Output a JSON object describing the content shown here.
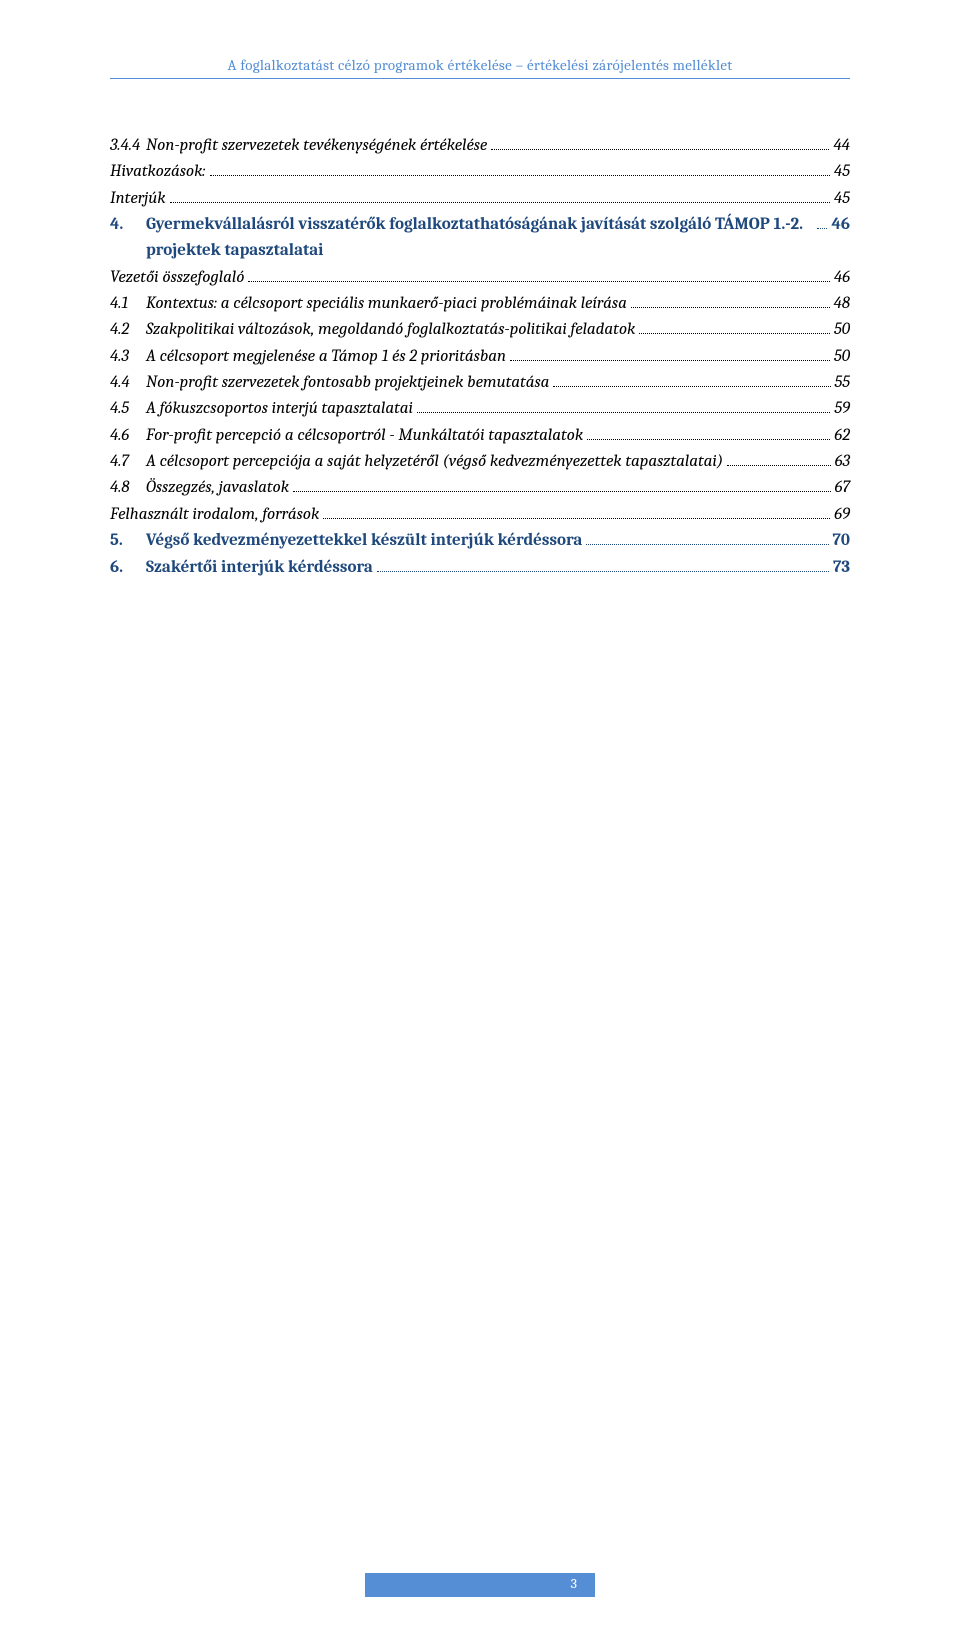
{
  "header": {
    "text": "A foglalkoztatást célzó programok értékelése – értékelési zárójelentés melléklet",
    "color": "#558ed5",
    "border_color": "#558ed5",
    "font_size": 15
  },
  "toc": {
    "font_size": 17,
    "color_regular": "#000000",
    "color_section": "#1f497d",
    "entries": [
      {
        "num": "3.4.4",
        "title": "Non-profit szervezetek tevékenységének értékelése",
        "page": "44",
        "italic": true,
        "bold": false,
        "blue": false,
        "level": 1
      },
      {
        "num": "",
        "title": "Hivatkozások:",
        "page": "45",
        "italic": true,
        "bold": false,
        "blue": false,
        "level": 1
      },
      {
        "num": "",
        "title": "Interjúk",
        "page": "45",
        "italic": true,
        "bold": false,
        "blue": false,
        "level": 1
      },
      {
        "num": "4.",
        "title": "Gyermekvállalásról visszatérők foglalkoztathatóságának javítását szolgáló TÁMOP 1.-2. projektek tapasztalatai",
        "page": "46",
        "italic": false,
        "bold": true,
        "blue": true,
        "level": 0
      },
      {
        "num": "",
        "title": "Vezetői összefoglaló",
        "page": "46",
        "italic": true,
        "bold": false,
        "blue": false,
        "level": 1
      },
      {
        "num": "4.1",
        "title": "Kontextus: a célcsoport speciális munkaerő-piaci problémáinak leírása",
        "page": "48",
        "italic": true,
        "bold": false,
        "blue": false,
        "level": 1
      },
      {
        "num": "4.2",
        "title": "Szakpolitikai változások, megoldandó foglalkoztatás-politikai feladatok",
        "page": "50",
        "italic": true,
        "bold": false,
        "blue": false,
        "level": 1
      },
      {
        "num": "4.3",
        "title": "A célcsoport megjelenése a Támop 1 és 2 prioritásban",
        "page": "50",
        "italic": true,
        "bold": false,
        "blue": false,
        "level": 1
      },
      {
        "num": "4.4",
        "title": "Non-profit szervezetek fontosabb projektjeinek bemutatása",
        "page": "55",
        "italic": true,
        "bold": false,
        "blue": false,
        "level": 1
      },
      {
        "num": "4.5",
        "title": "A fókuszcsoportos interjú tapasztalatai",
        "page": "59",
        "italic": true,
        "bold": false,
        "blue": false,
        "level": 1
      },
      {
        "num": "4.6",
        "title": "For-profit percepció a célcsoportról - Munkáltatói tapasztalatok",
        "page": "62",
        "italic": true,
        "bold": false,
        "blue": false,
        "level": 1
      },
      {
        "num": "4.7",
        "title": "A célcsoport percepciója a saját helyzetéről (végső kedvezményezettek tapasztalatai)",
        "page": "63",
        "italic": true,
        "bold": false,
        "blue": false,
        "level": 1
      },
      {
        "num": "4.8",
        "title": "Összegzés, javaslatok",
        "page": "67",
        "italic": true,
        "bold": false,
        "blue": false,
        "level": 1
      },
      {
        "num": "",
        "title": "Felhasznált irodalom, források",
        "page": "69",
        "italic": true,
        "bold": false,
        "blue": false,
        "level": 1
      },
      {
        "num": "5.",
        "title": "Végső kedvezményezettekkel készült interjúk kérdéssora",
        "page": "70",
        "italic": false,
        "bold": true,
        "blue": true,
        "level": 0
      },
      {
        "num": "6.",
        "title": "Szakértői interjúk kérdéssora",
        "page": "73",
        "italic": false,
        "bold": true,
        "blue": true,
        "level": 0
      }
    ]
  },
  "footer": {
    "page_number": "3",
    "background": "#558ed5",
    "text_color": "#ffffff"
  }
}
